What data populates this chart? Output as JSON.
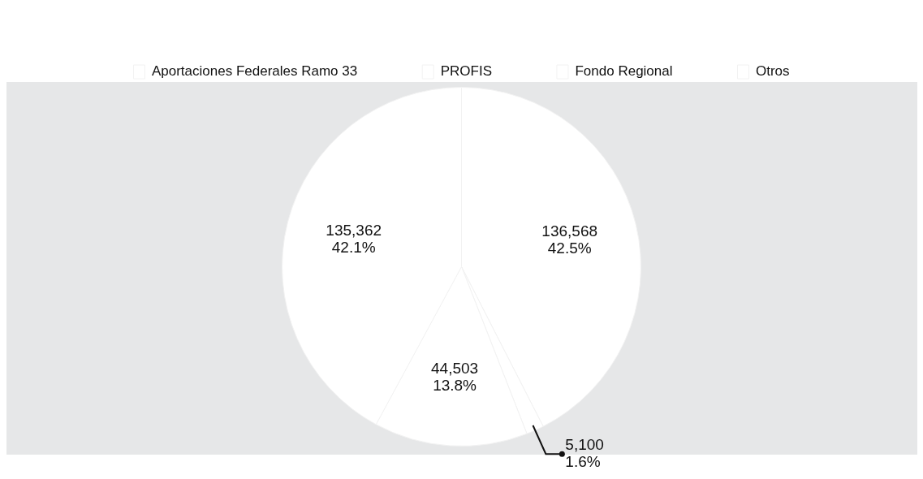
{
  "chart_data": {
    "type": "pie",
    "categories": [
      "Aportaciones Federales Ramo 33",
      "PROFIS",
      "Fondo Regional",
      "Otros"
    ],
    "values": [
      136568,
      5100,
      44503,
      135362
    ],
    "colors": [
      "#ffffff",
      "#ffffff",
      "#ffffff",
      "#ffffff"
    ],
    "value_labels": [
      "136,568\n42.5%",
      "5,100\n1.6%",
      "44,503\n13.8%",
      "135,362\n42.1%"
    ],
    "legend": "top"
  }
}
